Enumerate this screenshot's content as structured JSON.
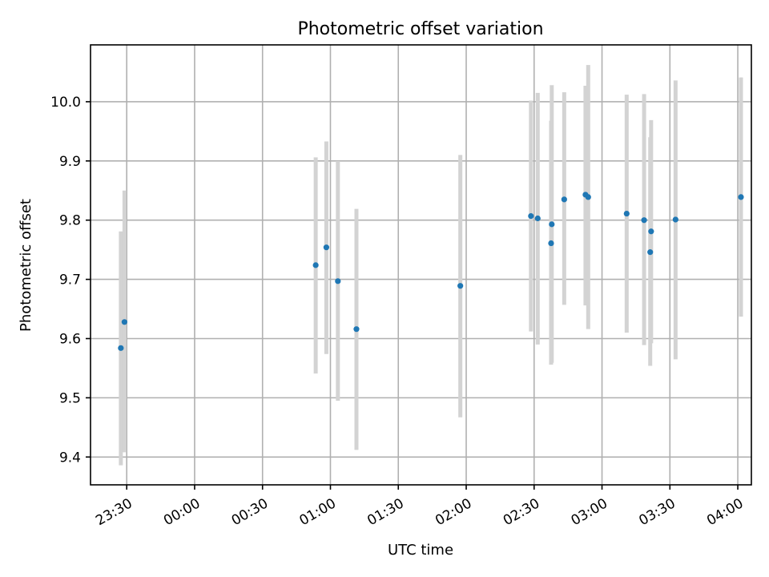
{
  "chart_data": {
    "type": "scatter",
    "title": "Photometric offset variation",
    "xlabel": "UTC time",
    "ylabel": "Photometric offset",
    "x_ticks": [
      "23:30",
      "00:00",
      "00:30",
      "01:00",
      "01:30",
      "02:00",
      "02:30",
      "03:00",
      "03:30",
      "04:00"
    ],
    "x_tick_minutes": [
      -30,
      0,
      30,
      60,
      90,
      120,
      150,
      180,
      210,
      240
    ],
    "xlim_minutes": [
      -46,
      246
    ],
    "y_ticks": [
      "9.4",
      "9.5",
      "9.6",
      "9.7",
      "9.8",
      "9.9",
      "10.0"
    ],
    "ylim": [
      9.353,
      10.096
    ],
    "grid": true,
    "colors": {
      "point": "#1f77b4",
      "errorbar": "#d3d3d3",
      "grid": "#b0b0b0"
    },
    "series": [
      {
        "x_minutes": [
          -32.6,
          -31.0,
          53.5,
          58.2,
          63.3,
          71.5,
          117.4,
          148.6,
          151.6,
          157.5,
          157.8,
          163.3,
          172.7,
          173.9,
          190.9,
          198.6,
          201.3,
          201.7,
          212.5,
          241.4
        ],
        "y": [
          9.584,
          9.628,
          9.724,
          9.754,
          9.697,
          9.616,
          9.689,
          9.807,
          9.803,
          9.761,
          9.793,
          9.835,
          9.843,
          9.839,
          9.811,
          9.8,
          9.746,
          9.781,
          9.801,
          9.839
        ],
        "yerr_low": [
          9.386,
          9.408,
          9.541,
          9.574,
          9.495,
          9.412,
          9.467,
          9.612,
          9.59,
          9.556,
          9.559,
          9.657,
          9.656,
          9.616,
          9.61,
          9.589,
          9.554,
          9.592,
          9.565,
          9.637
        ],
        "yerr_high": [
          9.781,
          9.85,
          9.906,
          9.933,
          9.9,
          9.819,
          9.91,
          10.002,
          10.015,
          9.968,
          10.028,
          10.016,
          10.027,
          10.062,
          10.012,
          10.013,
          9.94,
          9.969,
          10.036,
          10.041
        ]
      }
    ]
  }
}
